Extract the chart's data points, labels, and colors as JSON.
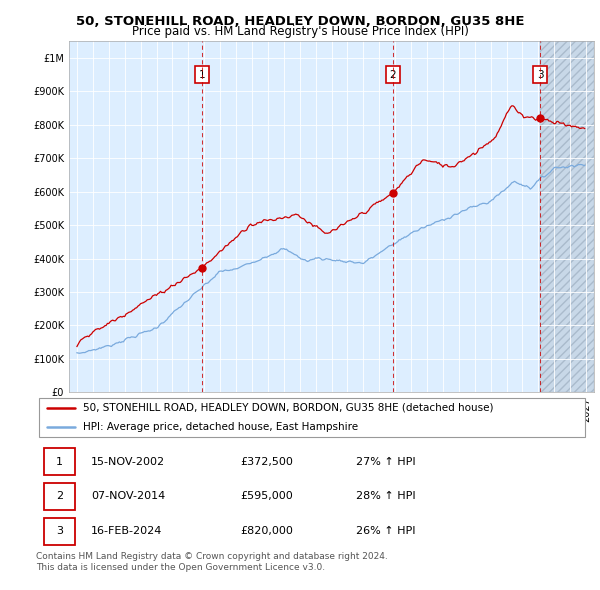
{
  "title": "50, STONEHILL ROAD, HEADLEY DOWN, BORDON, GU35 8HE",
  "subtitle": "Price paid vs. HM Land Registry's House Price Index (HPI)",
  "ylim": [
    0,
    1050000
  ],
  "yticks": [
    0,
    100000,
    200000,
    300000,
    400000,
    500000,
    600000,
    700000,
    800000,
    900000,
    1000000
  ],
  "ytick_labels": [
    "£0",
    "£100K",
    "£200K",
    "£300K",
    "£400K",
    "£500K",
    "£600K",
    "£700K",
    "£800K",
    "£900K",
    "£1M"
  ],
  "xlim_start": 1994.5,
  "xlim_end": 2027.5,
  "sale_dates": [
    2002.88,
    2014.85,
    2024.12
  ],
  "sale_prices": [
    372500,
    595000,
    820000
  ],
  "sale_labels": [
    "1",
    "2",
    "3"
  ],
  "red_color": "#cc0000",
  "blue_color": "#7aaadd",
  "background_color": "#ddeeff",
  "hatch_bg_color": "#c8d8e8",
  "legend_entries": [
    "50, STONEHILL ROAD, HEADLEY DOWN, BORDON, GU35 8HE (detached house)",
    "HPI: Average price, detached house, East Hampshire"
  ],
  "table_rows": [
    [
      "1",
      "15-NOV-2002",
      "£372,500",
      "27% ↑ HPI"
    ],
    [
      "2",
      "07-NOV-2014",
      "£595,000",
      "28% ↑ HPI"
    ],
    [
      "3",
      "16-FEB-2024",
      "£820,000",
      "26% ↑ HPI"
    ]
  ],
  "footnote": "Contains HM Land Registry data © Crown copyright and database right 2024.\nThis data is licensed under the Open Government Licence v3.0.",
  "title_fontsize": 9.5,
  "subtitle_fontsize": 8.5,
  "tick_fontsize": 7,
  "legend_fontsize": 7.5,
  "table_fontsize": 8,
  "footnote_fontsize": 6.5
}
